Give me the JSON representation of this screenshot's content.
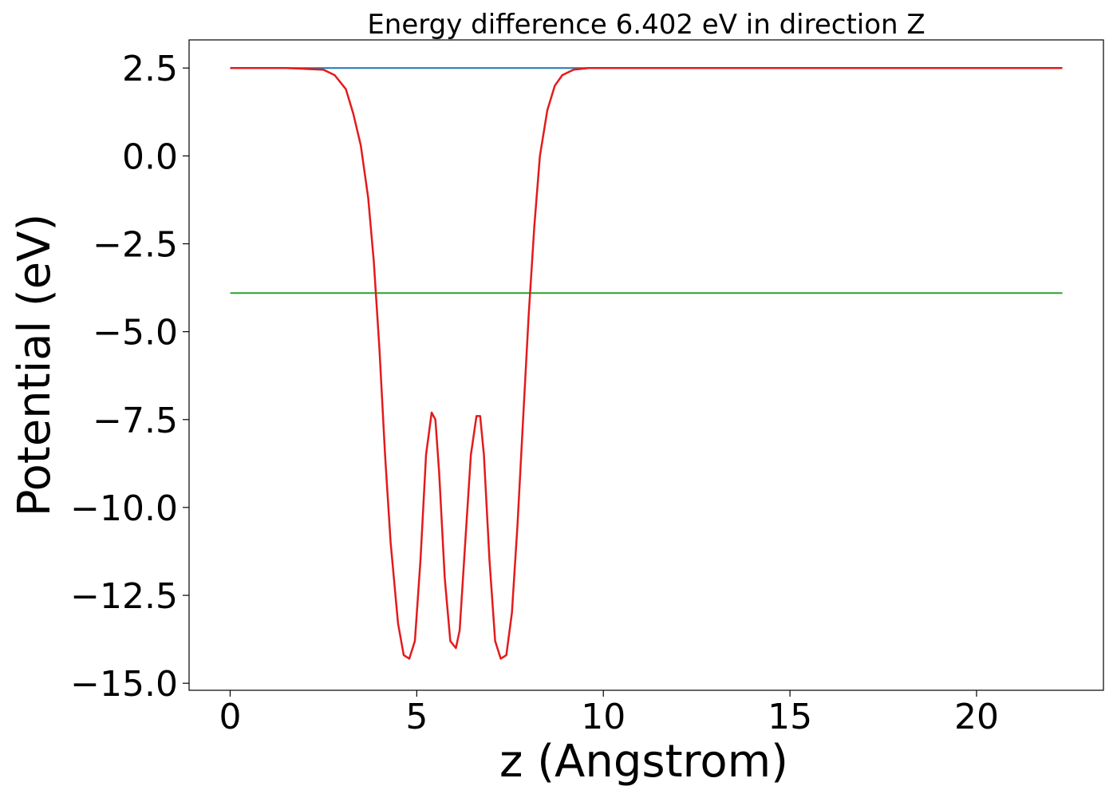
{
  "chart_data": {
    "type": "line",
    "title": "Energy difference 6.402 eV in direction Z",
    "xlabel": "z (Angstrom)",
    "ylabel": "Potential (eV)",
    "xlim": [
      -1.1,
      23.4
    ],
    "ylim": [
      -15.2,
      3.3
    ],
    "x_ticks": [
      0,
      5,
      10,
      15,
      20
    ],
    "x_tick_labels": [
      "0",
      "5",
      "10",
      "15",
      "20"
    ],
    "y_ticks": [
      2.5,
      0.0,
      -2.5,
      -5.0,
      -7.5,
      -10.0,
      -12.5,
      -15.0
    ],
    "y_tick_labels": [
      "2.5",
      "0.0",
      "−2.5",
      "−5.0",
      "−7.5",
      "−10.0",
      "−12.5",
      "−15.0"
    ],
    "grid": false,
    "legend": "none",
    "series": [
      {
        "color": "#1f77b4",
        "x": [
          0,
          22.3
        ],
        "y": [
          2.5,
          2.5
        ]
      },
      {
        "color": "#2ca02c",
        "x": [
          0,
          22.3
        ],
        "y": [
          -3.9,
          -3.9
        ]
      },
      {
        "color": "#e41a1c",
        "x": [
          0,
          1.5,
          2.5,
          2.8,
          3.1,
          3.3,
          3.5,
          3.7,
          3.85,
          4.0,
          4.15,
          4.3,
          4.5,
          4.65,
          4.8,
          4.95,
          5.1,
          5.25,
          5.4,
          5.5,
          5.6,
          5.75,
          5.9,
          6.05,
          6.15,
          6.3,
          6.45,
          6.6,
          6.7,
          6.8,
          6.95,
          7.1,
          7.25,
          7.4,
          7.55,
          7.7,
          7.85,
          8.0,
          8.15,
          8.3,
          8.5,
          8.7,
          8.9,
          9.2,
          9.6,
          10.0,
          11.0,
          22.3
        ],
        "y": [
          2.5,
          2.5,
          2.45,
          2.3,
          1.9,
          1.2,
          0.3,
          -1.2,
          -3.0,
          -5.5,
          -8.5,
          -11.0,
          -13.3,
          -14.2,
          -14.3,
          -13.8,
          -11.5,
          -8.5,
          -7.3,
          -7.5,
          -9.0,
          -12.0,
          -13.8,
          -14.0,
          -13.5,
          -11.0,
          -8.5,
          -7.4,
          -7.4,
          -8.5,
          -11.5,
          -13.8,
          -14.3,
          -14.2,
          -13.0,
          -10.5,
          -7.5,
          -4.5,
          -2.0,
          0.0,
          1.3,
          2.0,
          2.3,
          2.45,
          2.5,
          2.5,
          2.5,
          2.5
        ]
      }
    ]
  }
}
